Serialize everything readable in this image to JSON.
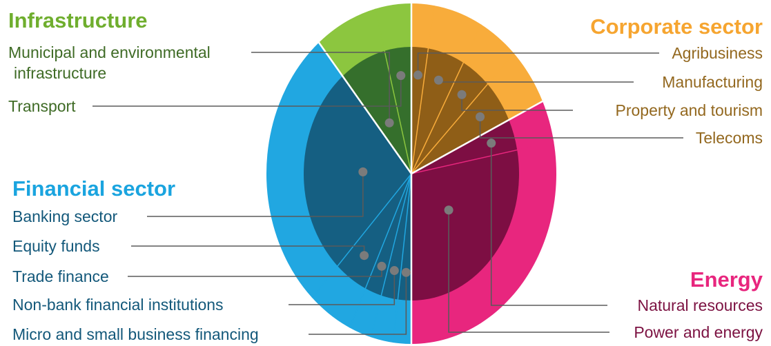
{
  "chart_data": {
    "type": "pie",
    "title": "",
    "groups": [
      {
        "name": "Infrastructure",
        "color": "#8cc63f",
        "text_color": "#6fae2e",
        "label_color": "#3f6b26",
        "inner_color": "#356f2c",
        "value": 11,
        "items": [
          {
            "label_lines": [
              "Municipal and environmental",
              "infrastructure"
            ],
            "value": 7
          },
          {
            "label_lines": [
              "Transport"
            ],
            "value": 4
          }
        ]
      },
      {
        "name": "Corporate sector",
        "color": "#f8ac3b",
        "text_color": "#f6a530",
        "label_color": "#93681f",
        "inner_color": "#8f5e17",
        "value": 18,
        "items": [
          {
            "label_lines": [
              "Agribusiness"
            ],
            "value": 2.5
          },
          {
            "label_lines": [
              "Manufacturing"
            ],
            "value": 5.5
          },
          {
            "label_lines": [
              "Property and tourism"
            ],
            "value": 4.5
          },
          {
            "label_lines": [
              "Telecoms"
            ],
            "value": 5.5
          }
        ]
      },
      {
        "name": "Energy",
        "color": "#e8267e",
        "text_color": "#e8267e",
        "label_color": "#7c1242",
        "inner_color": "#7d0e43",
        "value": 32,
        "items": [
          {
            "label_lines": [
              "Natural resources"
            ],
            "value": 4
          },
          {
            "label_lines": [
              "Power and energy"
            ],
            "value": 28
          }
        ]
      },
      {
        "name": "Financial sector",
        "color": "#21a7e1",
        "text_color": "#1aa4df",
        "label_color": "#13587a",
        "inner_color": "#155f82",
        "value": 39,
        "items": [
          {
            "label_lines": [
              "Micro and small business financing"
            ],
            "value": 2
          },
          {
            "label_lines": [
              "Non-bank financial institutions"
            ],
            "value": 2.5
          },
          {
            "label_lines": [
              "Trade finance"
            ],
            "value": 2.5
          },
          {
            "label_lines": [
              "Equity funds"
            ],
            "value": 5
          },
          {
            "label_lines": [
              "Banking sector"
            ],
            "value": 27
          }
        ]
      }
    ]
  }
}
